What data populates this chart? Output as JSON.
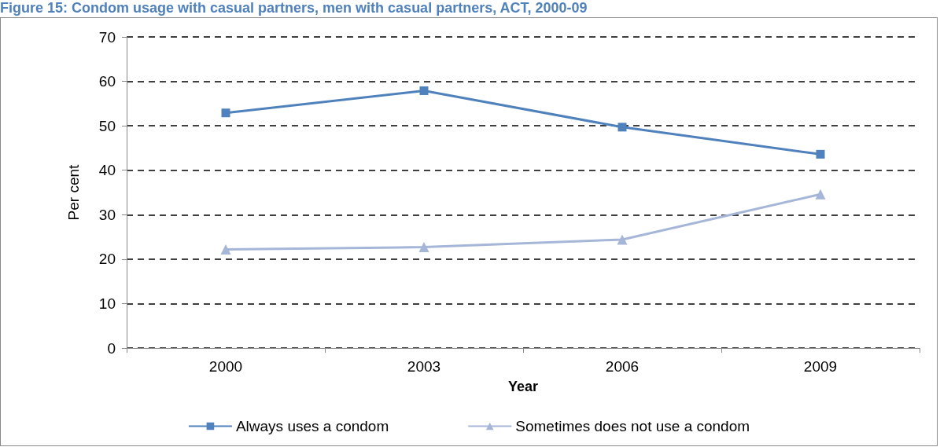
{
  "chart_data": {
    "type": "line",
    "title": "Figure 15: Condom usage with casual partners, men with casual partners, ACT, 2000-09",
    "xlabel": "Year",
    "ylabel": "Per cent",
    "categories": [
      "2000",
      "2003",
      "2006",
      "2009"
    ],
    "series": [
      {
        "name": "Always uses a condom",
        "color": "#4f81bd",
        "marker": "square",
        "values": [
          52.9,
          57.9,
          49.7,
          43.6
        ]
      },
      {
        "name": "Sometimes does not use a condom",
        "color": "#a5b6d8",
        "marker": "triangle",
        "values": [
          22.2,
          22.7,
          24.4,
          34.6
        ]
      }
    ],
    "ylim": [
      0,
      70
    ],
    "yticks": [
      0,
      10,
      20,
      30,
      40,
      50,
      60,
      70
    ],
    "grid": "y",
    "legend": "bottom",
    "line_style": "solid"
  }
}
